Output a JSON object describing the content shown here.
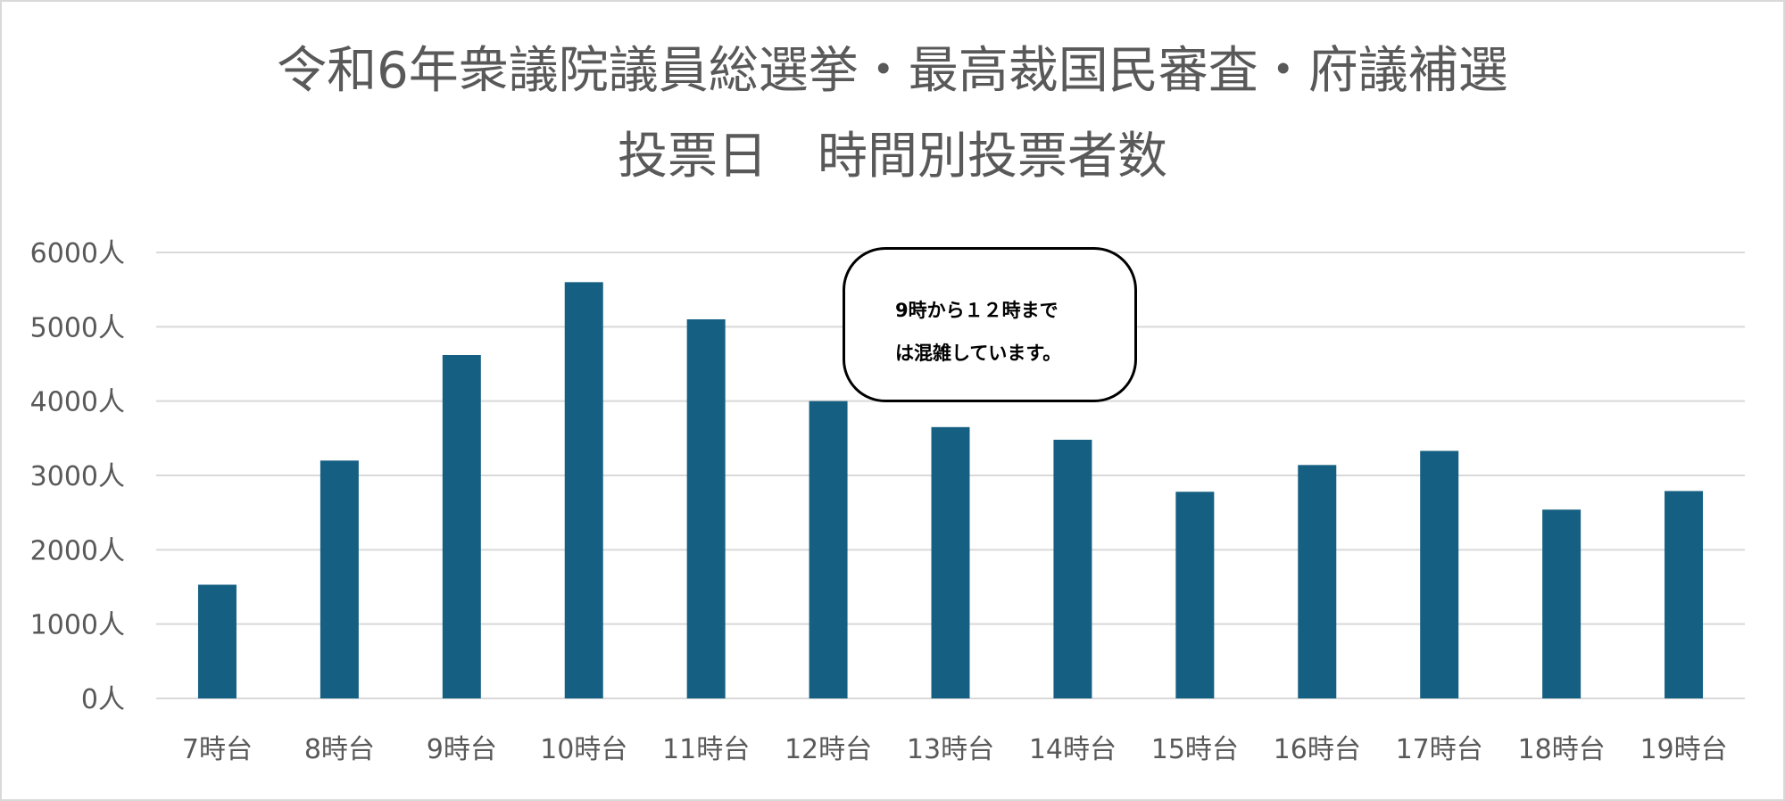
{
  "chart_data": {
    "type": "bar",
    "title": "令和6年衆議院議員総選挙・最高裁国民審査・府議補選",
    "subtitle": "投票日　時間別投票者数",
    "categories": [
      "7時台",
      "8時台",
      "9時台",
      "10時台",
      "11時台",
      "12時台",
      "13時台",
      "14時台",
      "15時台",
      "16時台",
      "17時台",
      "18時台",
      "19時台"
    ],
    "values": [
      1530,
      3200,
      4620,
      5600,
      5100,
      4000,
      3650,
      3480,
      2780,
      3140,
      3330,
      2540,
      2790
    ],
    "ylim": [
      0,
      6000
    ],
    "yticks": [
      0,
      1000,
      2000,
      3000,
      4000,
      5000,
      6000
    ],
    "ytick_labels": [
      "0人",
      "1000人",
      "2000人",
      "3000人",
      "4000人",
      "5000人",
      "6000人"
    ],
    "grid": true,
    "bar_color": "#156082",
    "grid_color": "#d9d9d9",
    "annotation": {
      "line1": "9時から１２時まで",
      "line2": "は混雑しています。"
    }
  }
}
